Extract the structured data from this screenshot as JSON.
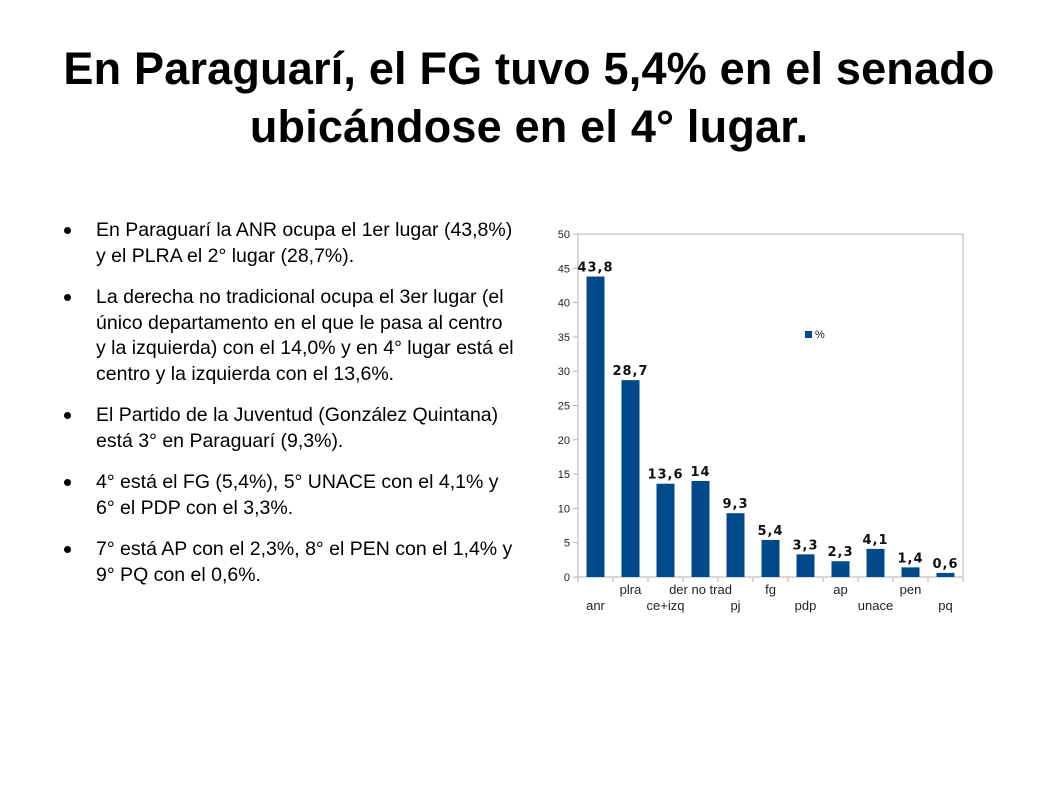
{
  "slide": {
    "title": "En Paraguarí, el FG tuvo 5,4% en el senado ubicándose en el 4° lugar.",
    "bullets": [
      "En Paraguarí la ANR ocupa el 1er lugar (43,8%) y el PLRA el 2° lugar (28,7%).",
      "La derecha no tradicional ocupa el 3er lugar (el único departamento en el que le pasa al centro y la izquierda) con el 14,0% y en 4° lugar está el centro y la izquierda con el 13,6%.",
      "El Partido de la Juventud (González Quintana) está 3° en Paraguarí (9,3%).",
      "4° está el FG (5,4%), 5° UNACE con el 4,1% y 6° el PDP con el 3,3%.",
      "7° está AP con el 2,3%, 8° el PEN con el 1,4% y 9° PQ con el 0,6%."
    ]
  },
  "chart_data": {
    "type": "bar",
    "categories": [
      "anr",
      "plra",
      "ce+izq",
      "der no trad",
      "pj",
      "fg",
      "pdp",
      "ap",
      "unace",
      "pen",
      "pq"
    ],
    "series": [
      {
        "name": "%",
        "values": [
          43.8,
          28.7,
          13.6,
          14,
          9.3,
          5.4,
          3.3,
          2.3,
          4.1,
          1.4,
          0.6
        ]
      }
    ],
    "data_labels": [
      "43,8",
      "28,7",
      "13,6",
      "14",
      "9,3",
      "5,4",
      "3,3",
      "2,3",
      "4,1",
      "1,4",
      "0,6"
    ],
    "y_ticks": [
      "0",
      "5",
      "10",
      "15",
      "20",
      "25",
      "30",
      "35",
      "40",
      "45",
      "50"
    ],
    "ylim": [
      0,
      50
    ],
    "title": "",
    "xlabel": "",
    "ylabel": "",
    "grid": false,
    "legend": "inside-top-right",
    "colors": {
      "bar": "#004a8c",
      "plot_border": "#b3b3b3",
      "axis": "#b3b3b3"
    }
  }
}
